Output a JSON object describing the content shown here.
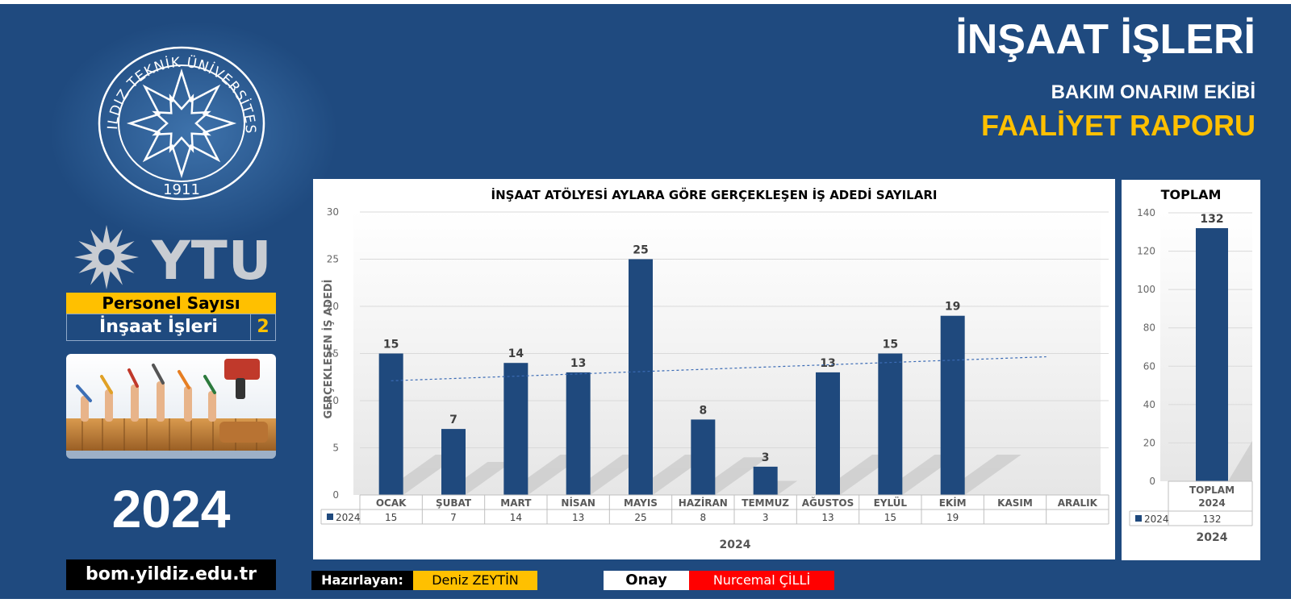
{
  "header": {
    "title": "İNŞAAT İŞLERİ",
    "subtitle": "BAKIM ONARIM EKİBİ",
    "report": "FAALİYET RAPORU"
  },
  "logo": {
    "seal_text": "YILDIZ TEKNİK ÜNİVERSİTESİ",
    "seal_year": "1911",
    "wordmark": "YTU"
  },
  "personel": {
    "heading": "Personel Sayısı",
    "unit": "İnşaat İşleri",
    "count": "2"
  },
  "year": "2024",
  "website": "bom.yildiz.edu.tr",
  "footer": {
    "prepared_label": "Hazırlayan:",
    "prepared_name": "Deniz ZEYTİN",
    "approval_label": "Onay",
    "approval_name": "Nurcemal ÇİLLİ"
  },
  "colors": {
    "background": "#1f4a7f",
    "bar": "#1f497d",
    "accent": "#ffc000",
    "approval": "#ff0000"
  },
  "chart_data": [
    {
      "type": "bar",
      "title": "İNŞAAT ATÖLYESİ AYLARA GÖRE GERÇEKLEŞEN İŞ ADEDİ SAYILARI",
      "ylabel": "GERÇEKLEŞEN İŞ ADEDİ",
      "xlabel": "2024",
      "ylim": [
        0,
        30
      ],
      "yticks": [
        0,
        5,
        10,
        15,
        20,
        25,
        30
      ],
      "categories": [
        "OCAK",
        "ŞUBAT",
        "MART",
        "NİSAN",
        "MAYIS",
        "HAZİRAN",
        "TEMMUZ",
        "AĞUSTOS",
        "EYLÜL",
        "EKİM",
        "KASIM",
        "ARALIK"
      ],
      "series": [
        {
          "name": "2024",
          "values": [
            15,
            7,
            14,
            13,
            25,
            8,
            3,
            13,
            15,
            19,
            null,
            null
          ]
        }
      ],
      "trendline": "linear",
      "data_table": true,
      "grid": true
    },
    {
      "type": "bar",
      "title": "TOPLAM",
      "xlabel": "2024",
      "ylim": [
        0,
        140
      ],
      "yticks": [
        0,
        20,
        40,
        60,
        80,
        100,
        120,
        140
      ],
      "categories": [
        "TOPLAM 2024"
      ],
      "category_lines": [
        "TOPLAM",
        "2024"
      ],
      "series": [
        {
          "name": "2024",
          "values": [
            132
          ]
        }
      ],
      "data_table": true,
      "grid": true
    }
  ]
}
